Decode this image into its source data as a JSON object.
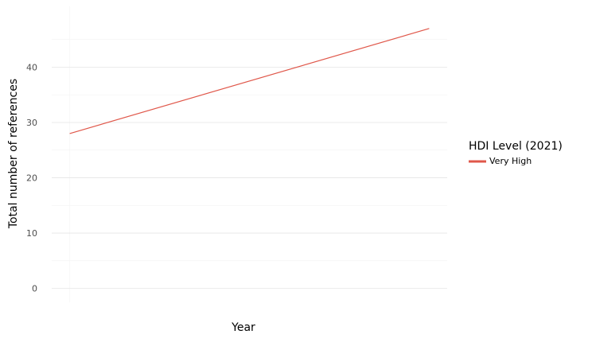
{
  "chart_data": {
    "type": "line",
    "title": "",
    "xlabel": "Year",
    "ylabel": "Total number of references",
    "x": [
      0,
      1
    ],
    "x_tick_labels": [],
    "series": [
      {
        "name": "Very High",
        "values": [
          28,
          47
        ],
        "color": "#e0574a"
      }
    ],
    "ylim": [
      -2.5,
      51
    ],
    "xlim": [
      -0.05,
      1.05
    ],
    "yticks": [
      0,
      10,
      20,
      30,
      40
    ],
    "ytick_labels": [
      "0",
      "10",
      "20",
      "30",
      "40"
    ],
    "grid": true,
    "legend": {
      "title": "HDI Level (2021)",
      "placement": "right"
    }
  }
}
